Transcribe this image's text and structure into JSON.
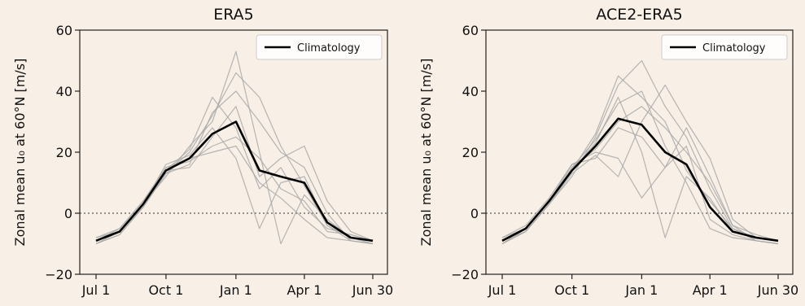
{
  "chart_data": [
    {
      "type": "line",
      "title": "ERA5",
      "ylabel": "Zonal mean u₀ at 60°N [m/s]",
      "xlabel": "",
      "ylim": [
        -20,
        60
      ],
      "yticks": [
        -20,
        0,
        20,
        40,
        60
      ],
      "xticks": [
        "Jul 1",
        "Oct 1",
        "Jan 1",
        "Apr 1",
        "Jun 30"
      ],
      "legend": {
        "placement": "top-right",
        "entries": [
          "Climatology"
        ]
      },
      "reference_line": {
        "y": 0,
        "style": "dotted"
      },
      "colors": {
        "climatology": "#000000",
        "members": "#a9a9a9"
      },
      "series": [
        {
          "name": "Climatology",
          "role": "climatology",
          "x": [
            "Jul 1",
            "Aug 1",
            "Sep 1",
            "Oct 1",
            "Nov 1",
            "Dec 1",
            "Jan 1",
            "Feb 1",
            "Mar 1",
            "Apr 1",
            "May 1",
            "Jun 1",
            "Jun 30"
          ],
          "y": [
            -9,
            -6,
            3,
            14,
            18,
            26,
            30,
            14,
            12,
            10,
            -3,
            -8,
            -9
          ]
        },
        {
          "role": "member",
          "x": [
            "Jul 1",
            "Aug 1",
            "Sep 1",
            "Oct 1",
            "Nov 1",
            "Dec 1",
            "Jan 1",
            "Feb 1",
            "Mar 1",
            "Apr 1",
            "May 1",
            "Jun 1",
            "Jun 30"
          ],
          "y": [
            -10,
            -7,
            2,
            13,
            20,
            32,
            46,
            38,
            22,
            9,
            -4,
            -9,
            -10
          ]
        },
        {
          "role": "member",
          "x": [
            "Jul 1",
            "Aug 1",
            "Sep 1",
            "Oct 1",
            "Nov 1",
            "Dec 1",
            "Jan 1",
            "Feb 1",
            "Mar 1",
            "Apr 1",
            "May 1",
            "Jun 1",
            "Jun 30"
          ],
          "y": [
            -8,
            -5,
            4,
            15,
            17,
            22,
            25,
            18,
            8,
            4,
            -6,
            -7,
            -9
          ]
        },
        {
          "role": "member",
          "x": [
            "Jul 1",
            "Aug 1",
            "Sep 1",
            "Oct 1",
            "Nov 1",
            "Dec 1",
            "Jan 1",
            "Feb 1",
            "Mar 1",
            "Apr 1",
            "May 1",
            "Jun 1",
            "Jun 30"
          ],
          "y": [
            -9,
            -6,
            3,
            12,
            22,
            30,
            53,
            20,
            -10,
            6,
            -2,
            -8,
            -10
          ]
        },
        {
          "role": "member",
          "x": [
            "Jul 1",
            "Aug 1",
            "Sep 1",
            "Oct 1",
            "Nov 1",
            "Dec 1",
            "Jan 1",
            "Feb 1",
            "Mar 1",
            "Apr 1",
            "May 1",
            "Jun 1",
            "Jun 30"
          ],
          "y": [
            -10,
            -6,
            2,
            14,
            15,
            25,
            35,
            12,
            18,
            22,
            4,
            -6,
            -9
          ]
        },
        {
          "role": "member",
          "x": [
            "Jul 1",
            "Aug 1",
            "Sep 1",
            "Oct 1",
            "Nov 1",
            "Dec 1",
            "Jan 1",
            "Feb 1",
            "Mar 1",
            "Apr 1",
            "May 1",
            "Jun 1",
            "Jun 30"
          ],
          "y": [
            -8,
            -6,
            3,
            16,
            19,
            28,
            18,
            -5,
            10,
            12,
            -4,
            -8,
            -9
          ]
        },
        {
          "role": "member",
          "x": [
            "Jul 1",
            "Aug 1",
            "Sep 1",
            "Oct 1",
            "Nov 1",
            "Dec 1",
            "Jan 1",
            "Feb 1",
            "Mar 1",
            "Apr 1",
            "May 1",
            "Jun 1",
            "Jun 30"
          ],
          "y": [
            -9,
            -5,
            4,
            14,
            21,
            38,
            28,
            8,
            15,
            2,
            -5,
            -7,
            -9
          ]
        },
        {
          "role": "member",
          "x": [
            "Jul 1",
            "Aug 1",
            "Sep 1",
            "Oct 1",
            "Nov 1",
            "Dec 1",
            "Jan 1",
            "Feb 1",
            "Mar 1",
            "Apr 1",
            "May 1",
            "Jun 1",
            "Jun 30"
          ],
          "y": [
            -10,
            -7,
            2,
            13,
            16,
            33,
            40,
            30,
            20,
            15,
            0,
            -9,
            -10
          ]
        },
        {
          "role": "member",
          "x": [
            "Jul 1",
            "Aug 1",
            "Sep 1",
            "Oct 1",
            "Nov 1",
            "Dec 1",
            "Jan 1",
            "Feb 1",
            "Mar 1",
            "Apr 1",
            "May 1",
            "Jun 1",
            "Jun 30"
          ],
          "y": [
            -9,
            -6,
            3,
            15,
            18,
            20,
            22,
            10,
            5,
            -2,
            -8,
            -9,
            -10
          ]
        }
      ]
    },
    {
      "type": "line",
      "title": "ACE2-ERA5",
      "ylabel": "Zonal mean u₀ at 60°N [m/s]",
      "xlabel": "",
      "ylim": [
        -20,
        60
      ],
      "yticks": [
        -20,
        0,
        20,
        40,
        60
      ],
      "xticks": [
        "Jul 1",
        "Oct 1",
        "Jan 1",
        "Apr 1",
        "Jun 30"
      ],
      "legend": {
        "placement": "top-right",
        "entries": [
          "Climatology"
        ]
      },
      "reference_line": {
        "y": 0,
        "style": "dotted"
      },
      "colors": {
        "climatology": "#000000",
        "members": "#a9a9a9"
      },
      "series": [
        {
          "name": "Climatology",
          "role": "climatology",
          "x": [
            "Jul 1",
            "Aug 1",
            "Sep 1",
            "Oct 1",
            "Nov 1",
            "Dec 1",
            "Jan 1",
            "Feb 1",
            "Mar 1",
            "Apr 1",
            "May 1",
            "Jun 1",
            "Jun 30"
          ],
          "y": [
            -9,
            -5,
            4,
            14,
            22,
            31,
            29,
            20,
            16,
            2,
            -6,
            -8,
            -9
          ]
        },
        {
          "role": "member",
          "x": [
            "Jul 1",
            "Aug 1",
            "Sep 1",
            "Oct 1",
            "Nov 1",
            "Dec 1",
            "Jan 1",
            "Feb 1",
            "Mar 1",
            "Apr 1",
            "May 1",
            "Jun 1",
            "Jun 30"
          ],
          "y": [
            -10,
            -6,
            3,
            12,
            25,
            42,
            50,
            35,
            25,
            8,
            -5,
            -9,
            -10
          ]
        },
        {
          "role": "member",
          "x": [
            "Jul 1",
            "Aug 1",
            "Sep 1",
            "Oct 1",
            "Nov 1",
            "Dec 1",
            "Jan 1",
            "Feb 1",
            "Mar 1",
            "Apr 1",
            "May 1",
            "Jun 1",
            "Jun 30"
          ],
          "y": [
            -8,
            -4,
            5,
            16,
            20,
            18,
            5,
            15,
            28,
            12,
            -4,
            -7,
            -9
          ]
        },
        {
          "role": "member",
          "x": [
            "Jul 1",
            "Aug 1",
            "Sep 1",
            "Oct 1",
            "Nov 1",
            "Dec 1",
            "Jan 1",
            "Feb 1",
            "Mar 1",
            "Apr 1",
            "May 1",
            "Jun 1",
            "Jun 30"
          ],
          "y": [
            -9,
            -5,
            4,
            15,
            24,
            36,
            40,
            22,
            10,
            -5,
            -8,
            -9,
            -10
          ]
        },
        {
          "role": "member",
          "x": [
            "Jul 1",
            "Aug 1",
            "Sep 1",
            "Oct 1",
            "Nov 1",
            "Dec 1",
            "Jan 1",
            "Feb 1",
            "Mar 1",
            "Apr 1",
            "May 1",
            "Jun 1",
            "Jun 30"
          ],
          "y": [
            -10,
            -6,
            3,
            13,
            19,
            12,
            30,
            42,
            30,
            18,
            -2,
            -8,
            -9
          ]
        },
        {
          "role": "member",
          "x": [
            "Jul 1",
            "Aug 1",
            "Sep 1",
            "Oct 1",
            "Nov 1",
            "Dec 1",
            "Jan 1",
            "Feb 1",
            "Mar 1",
            "Apr 1",
            "May 1",
            "Jun 1",
            "Jun 30"
          ],
          "y": [
            -8,
            -5,
            4,
            14,
            23,
            38,
            20,
            -8,
            12,
            5,
            -6,
            -8,
            -9
          ]
        },
        {
          "role": "member",
          "x": [
            "Jul 1",
            "Aug 1",
            "Sep 1",
            "Oct 1",
            "Nov 1",
            "Dec 1",
            "Jan 1",
            "Feb 1",
            "Mar 1",
            "Apr 1",
            "May 1",
            "Jun 1",
            "Jun 30"
          ],
          "y": [
            -9,
            -6,
            3,
            15,
            21,
            30,
            35,
            28,
            20,
            10,
            -4,
            -9,
            -10
          ]
        },
        {
          "role": "member",
          "x": [
            "Jul 1",
            "Aug 1",
            "Sep 1",
            "Oct 1",
            "Nov 1",
            "Dec 1",
            "Jan 1",
            "Feb 1",
            "Mar 1",
            "Apr 1",
            "May 1",
            "Jun 1",
            "Jun 30"
          ],
          "y": [
            -10,
            -5,
            4,
            16,
            18,
            28,
            25,
            15,
            22,
            -2,
            -7,
            -9,
            -10
          ]
        },
        {
          "role": "member",
          "x": [
            "Jul 1",
            "Aug 1",
            "Sep 1",
            "Oct 1",
            "Nov 1",
            "Dec 1",
            "Jan 1",
            "Feb 1",
            "Mar 1",
            "Apr 1",
            "May 1",
            "Jun 1",
            "Jun 30"
          ],
          "y": [
            -9,
            -6,
            3,
            14,
            26,
            45,
            38,
            30,
            14,
            4,
            -5,
            -8,
            -9
          ]
        }
      ]
    }
  ]
}
